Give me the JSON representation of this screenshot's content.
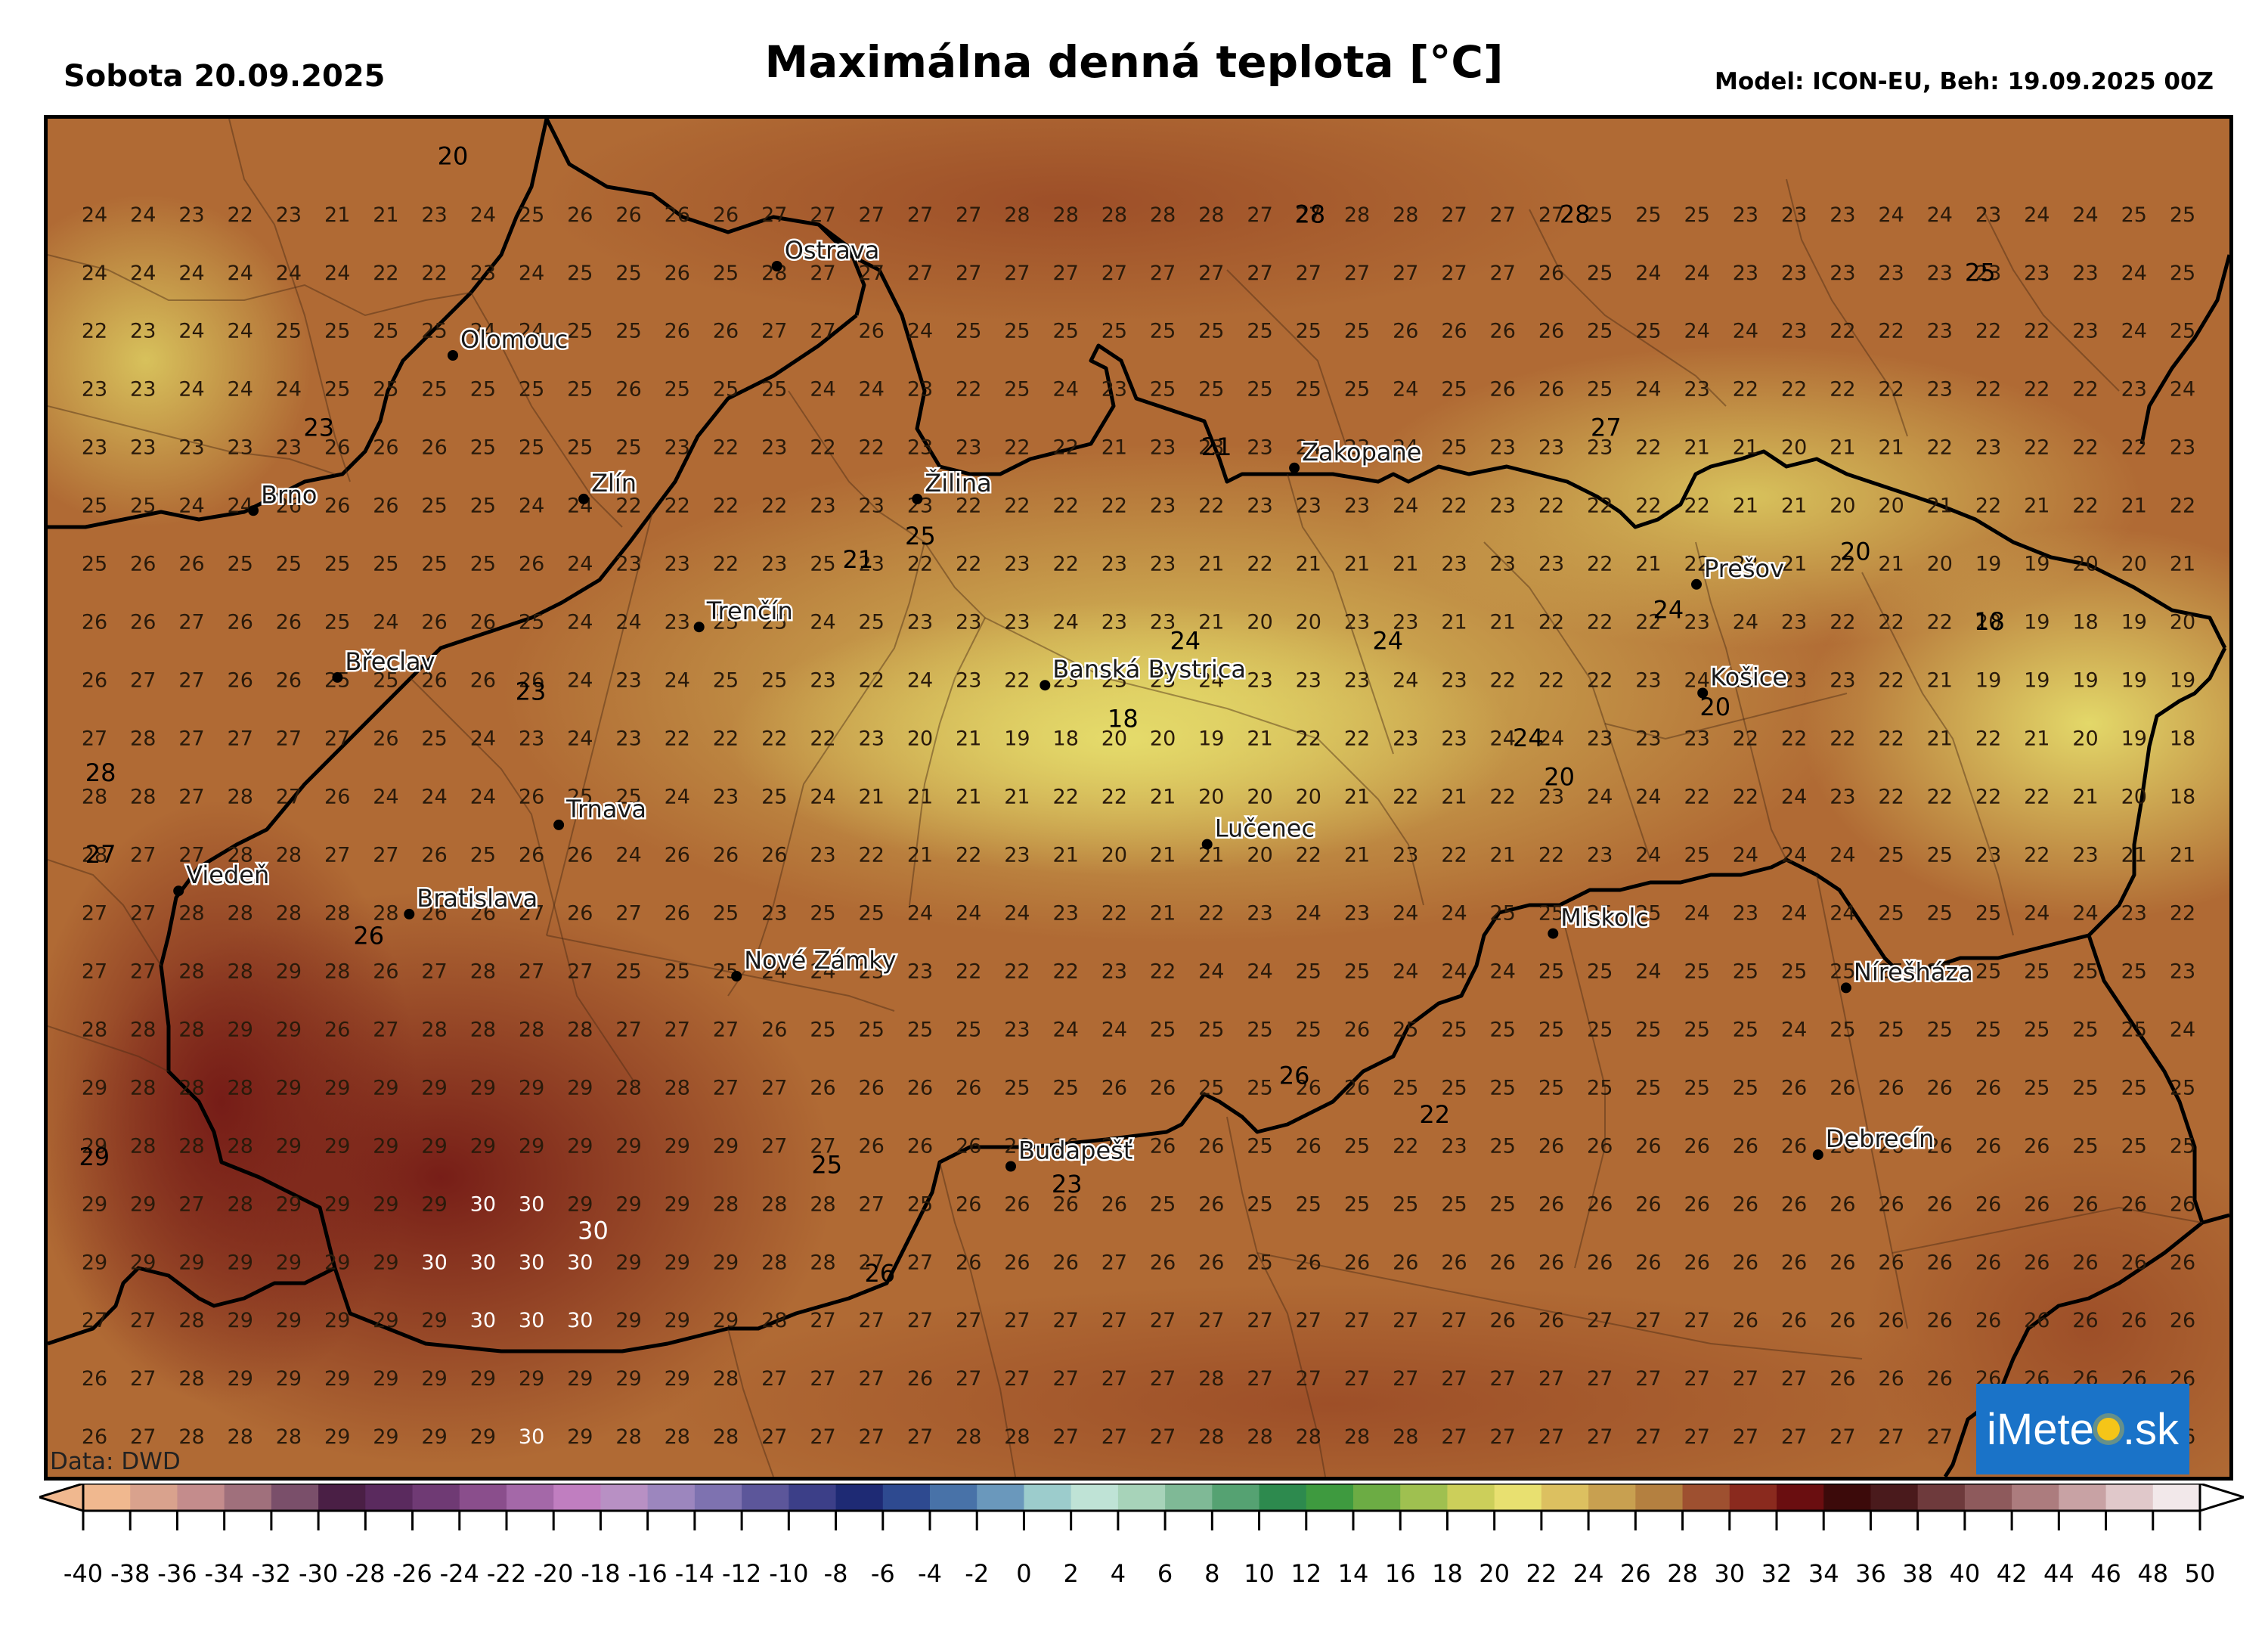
{
  "header": {
    "date": "Sobota 20.09.2025",
    "title": "Maximálna denná teplota [°C]",
    "model": "Model: ICON-EU, Beh: 19.09.2025 00Z"
  },
  "source": "Data: DWD",
  "logo": {
    "text_before": "iMete",
    "text_after": ".sk"
  },
  "colors": {
    "map_cold": "#e8e070",
    "map_mid": "#c48e42",
    "map_warm": "#a4532a",
    "map_hot": "#7a1e18",
    "border": "#000000",
    "logo_bg": "#1a73c8"
  },
  "colorbar": {
    "min": -40,
    "max": 50,
    "step": 2,
    "labels": [
      "-40",
      "-38",
      "-36",
      "-34",
      "-32",
      "-30",
      "-28",
      "-26",
      "-24",
      "-22",
      "-20",
      "-18",
      "-16",
      "-14",
      "-12",
      "-10",
      "-8",
      "-6",
      "-4",
      "-2",
      "0",
      "2",
      "4",
      "6",
      "8",
      "10",
      "12",
      "14",
      "16",
      "18",
      "20",
      "22",
      "24",
      "26",
      "28",
      "30",
      "32",
      "34",
      "36",
      "38",
      "40",
      "42",
      "44",
      "46",
      "48",
      "50"
    ],
    "colors": [
      "#f0b88f",
      "#d9a28d",
      "#c48c8c",
      "#a0707c",
      "#7a4f6a",
      "#4a1f45",
      "#5a2a5e",
      "#6f3a74",
      "#8a4e8c",
      "#a468a8",
      "#c07ec0",
      "#b890c4",
      "#9c86be",
      "#7e72b0",
      "#5c569a",
      "#3c3f88",
      "#1e2a74",
      "#2e4a90",
      "#4872a8",
      "#6a98bc",
      "#9ccccc",
      "#bfe3d6",
      "#a7d3b9",
      "#7fb996",
      "#55a272",
      "#2d8a4e",
      "#3e9a3f",
      "#6cac44",
      "#9fc050",
      "#cccf5a",
      "#e8e070",
      "#dcc060",
      "#c8a050",
      "#b48040",
      "#9e5030",
      "#8a2a1e",
      "#6a0e10",
      "#3c0a0a",
      "#4a1a1c",
      "#6e3a3c",
      "#8e5a5c",
      "#ac7c7e",
      "#c8a2a4",
      "#e0c8ca",
      "#f2e8ea"
    ]
  },
  "cities": [
    {
      "name": "Ostrava",
      "x": 18.29,
      "y": 49.82
    },
    {
      "name": "Olomouc",
      "x": 17.25,
      "y": 49.59
    },
    {
      "name": "Brno",
      "x": 16.61,
      "y": 49.19
    },
    {
      "name": "Zlín",
      "x": 17.67,
      "y": 49.22
    },
    {
      "name": "Žilina",
      "x": 18.74,
      "y": 49.22
    },
    {
      "name": "Zakopane",
      "x": 19.95,
      "y": 49.3
    },
    {
      "name": "Prešov",
      "x": 21.24,
      "y": 49.0
    },
    {
      "name": "Trenčín",
      "x": 18.04,
      "y": 48.89
    },
    {
      "name": "Banská Bystrica",
      "x": 19.15,
      "y": 48.74
    },
    {
      "name": "Košice",
      "x": 21.26,
      "y": 48.72
    },
    {
      "name": "Břeclav",
      "x": 16.88,
      "y": 48.76
    },
    {
      "name": "Trnava",
      "x": 17.59,
      "y": 48.38
    },
    {
      "name": "Lučenec",
      "x": 19.67,
      "y": 48.33
    },
    {
      "name": "Viedeň",
      "x": 16.37,
      "y": 48.21
    },
    {
      "name": "Bratislava",
      "x": 17.11,
      "y": 48.15
    },
    {
      "name": "Miskolc",
      "x": 20.78,
      "y": 48.1
    },
    {
      "name": "Nové Zámky",
      "x": 18.16,
      "y": 47.99
    },
    {
      "name": "Nírešháza",
      "x": 21.72,
      "y": 47.96
    },
    {
      "name": "Debrecín",
      "x": 21.63,
      "y": 47.53
    },
    {
      "name": "Budapešť",
      "x": 19.04,
      "y": 47.5
    }
  ],
  "grid_values": [
    {
      "row_lat": 49.95,
      "values": [
        24,
        24,
        23,
        22,
        23,
        21,
        21,
        23,
        24,
        25,
        26,
        26,
        26,
        26,
        27,
        27,
        27,
        27,
        27,
        28,
        28,
        28,
        28,
        28,
        27,
        27,
        28,
        28,
        27,
        27,
        27,
        25,
        25,
        25,
        23,
        23,
        23,
        24,
        24,
        23,
        24,
        24,
        25,
        25
      ]
    },
    {
      "row_lat": 49.8,
      "values": [
        24,
        24,
        24,
        24,
        24,
        24,
        22,
        22,
        23,
        24,
        25,
        25,
        26,
        25,
        28,
        27,
        27,
        27,
        27,
        27,
        27,
        27,
        27,
        27,
        27,
        27,
        27,
        27,
        27,
        27,
        26,
        25,
        24,
        24,
        23,
        23,
        23,
        23,
        23,
        23,
        23,
        23,
        24,
        25
      ]
    },
    {
      "row_lat": 49.65,
      "values": [
        22,
        23,
        24,
        24,
        25,
        25,
        25,
        25,
        24,
        24,
        25,
        25,
        26,
        26,
        27,
        27,
        26,
        24,
        25,
        25,
        25,
        25,
        25,
        25,
        25,
        25,
        25,
        26,
        26,
        26,
        26,
        25,
        25,
        24,
        24,
        23,
        22,
        22,
        23,
        22,
        22,
        23,
        24,
        25
      ]
    },
    {
      "row_lat": 49.5,
      "values": [
        23,
        23,
        24,
        24,
        24,
        25,
        25,
        25,
        25,
        25,
        25,
        26,
        25,
        25,
        25,
        24,
        24,
        23,
        22,
        25,
        24,
        23,
        25,
        25,
        25,
        25,
        25,
        24,
        25,
        26,
        26,
        25,
        24,
        23,
        22,
        22,
        22,
        22,
        23,
        22,
        22,
        22,
        23,
        24
      ]
    },
    {
      "row_lat": 49.35,
      "values": [
        23,
        23,
        23,
        23,
        23,
        26,
        26,
        26,
        25,
        25,
        25,
        25,
        23,
        22,
        23,
        22,
        22,
        23,
        23,
        22,
        22,
        21,
        23,
        23,
        23,
        24,
        23,
        24,
        25,
        23,
        23,
        23,
        22,
        21,
        21,
        20,
        21,
        21,
        22,
        23,
        22,
        22,
        22,
        23
      ]
    },
    {
      "row_lat": 49.2,
      "values": [
        25,
        25,
        24,
        24,
        26,
        26,
        26,
        25,
        25,
        24,
        24,
        22,
        22,
        22,
        22,
        23,
        23,
        23,
        22,
        22,
        22,
        22,
        23,
        22,
        23,
        23,
        23,
        24,
        22,
        23,
        22,
        22,
        22,
        22,
        21,
        21,
        20,
        20,
        21,
        22,
        21,
        22,
        21,
        22
      ]
    },
    {
      "row_lat": 49.05,
      "values": [
        25,
        26,
        26,
        25,
        25,
        25,
        25,
        25,
        25,
        26,
        24,
        23,
        23,
        22,
        23,
        25,
        23,
        22,
        22,
        23,
        22,
        23,
        23,
        21,
        22,
        21,
        21,
        21,
        23,
        23,
        23,
        22,
        21,
        22,
        22,
        21,
        22,
        21,
        20,
        19,
        19,
        20,
        20,
        21
      ]
    },
    {
      "row_lat": 48.9,
      "values": [
        26,
        26,
        27,
        26,
        26,
        25,
        24,
        26,
        26,
        25,
        24,
        24,
        23,
        25,
        25,
        24,
        25,
        23,
        23,
        23,
        24,
        23,
        23,
        21,
        20,
        20,
        23,
        23,
        21,
        21,
        22,
        22,
        22,
        23,
        24,
        23,
        22,
        22,
        22,
        20,
        19,
        18,
        19,
        20
      ]
    },
    {
      "row_lat": 48.75,
      "values": [
        26,
        27,
        27,
        26,
        26,
        25,
        25,
        26,
        26,
        26,
        24,
        23,
        24,
        25,
        25,
        23,
        22,
        24,
        23,
        22,
        23,
        23,
        23,
        24,
        23,
        23,
        23,
        24,
        23,
        22,
        22,
        22,
        23,
        24,
        23,
        23,
        23,
        22,
        21,
        19,
        19,
        19,
        19,
        19
      ]
    },
    {
      "row_lat": 48.6,
      "values": [
        27,
        28,
        27,
        27,
        27,
        27,
        26,
        25,
        24,
        23,
        24,
        23,
        22,
        22,
        22,
        22,
        23,
        20,
        21,
        19,
        18,
        20,
        20,
        19,
        21,
        22,
        22,
        23,
        23,
        24,
        24,
        23,
        23,
        23,
        22,
        22,
        22,
        22,
        21,
        22,
        21,
        20,
        19,
        18
      ]
    },
    {
      "row_lat": 48.45,
      "values": [
        28,
        28,
        27,
        28,
        27,
        26,
        24,
        24,
        24,
        26,
        25,
        25,
        24,
        23,
        25,
        24,
        21,
        21,
        21,
        21,
        22,
        22,
        21,
        20,
        20,
        20,
        21,
        22,
        21,
        22,
        23,
        24,
        24,
        22,
        22,
        24,
        23,
        22,
        22,
        22,
        22,
        21,
        20,
        18
      ]
    },
    {
      "row_lat": 48.3,
      "values": [
        28,
        27,
        27,
        28,
        28,
        27,
        27,
        26,
        25,
        26,
        26,
        24,
        26,
        26,
        26,
        23,
        22,
        21,
        22,
        23,
        21,
        20,
        21,
        21,
        20,
        22,
        21,
        23,
        22,
        21,
        22,
        23,
        24,
        25,
        24,
        24,
        24,
        25,
        25,
        23,
        22,
        23,
        21,
        21
      ]
    },
    {
      "row_lat": 48.15,
      "values": [
        27,
        27,
        28,
        28,
        28,
        28,
        28,
        26,
        26,
        27,
        26,
        27,
        26,
        25,
        23,
        25,
        25,
        24,
        24,
        24,
        23,
        22,
        21,
        22,
        23,
        24,
        23,
        24,
        24,
        25,
        25,
        25,
        25,
        24,
        23,
        24,
        24,
        25,
        25,
        25,
        24,
        24,
        23,
        22
      ]
    },
    {
      "row_lat": 48.0,
      "values": [
        27,
        27,
        28,
        28,
        29,
        28,
        26,
        27,
        28,
        27,
        27,
        25,
        25,
        25,
        24,
        24,
        23,
        23,
        22,
        22,
        22,
        23,
        22,
        24,
        24,
        25,
        25,
        24,
        24,
        24,
        25,
        25,
        24,
        25,
        25,
        25,
        25,
        25,
        25,
        25,
        25,
        25,
        25,
        23
      ]
    },
    {
      "row_lat": 47.85,
      "values": [
        28,
        28,
        28,
        29,
        29,
        26,
        27,
        28,
        28,
        28,
        28,
        27,
        27,
        27,
        26,
        25,
        25,
        25,
        25,
        23,
        24,
        24,
        25,
        25,
        25,
        25,
        26,
        25,
        25,
        25,
        25,
        25,
        25,
        25,
        25,
        24,
        25,
        25,
        25,
        25,
        25,
        25,
        25,
        24
      ]
    },
    {
      "row_lat": 47.7,
      "values": [
        29,
        28,
        28,
        28,
        29,
        29,
        29,
        29,
        29,
        29,
        29,
        28,
        28,
        27,
        27,
        26,
        26,
        26,
        26,
        25,
        25,
        26,
        26,
        25,
        25,
        26,
        26,
        25,
        25,
        25,
        25,
        25,
        25,
        25,
        25,
        26,
        26,
        26,
        26,
        26,
        25,
        25,
        25,
        25
      ]
    },
    {
      "row_lat": 47.55,
      "values": [
        29,
        28,
        28,
        28,
        29,
        29,
        29,
        29,
        29,
        29,
        29,
        29,
        29,
        29,
        27,
        27,
        26,
        26,
        26,
        26,
        26,
        26,
        26,
        26,
        25,
        26,
        25,
        22,
        23,
        25,
        26,
        26,
        26,
        26,
        26,
        26,
        26,
        26,
        26,
        26,
        26,
        25,
        25,
        25
      ]
    },
    {
      "row_lat": 47.4,
      "values": [
        29,
        29,
        27,
        28,
        29,
        29,
        29,
        29,
        30,
        30,
        29,
        29,
        29,
        28,
        28,
        28,
        27,
        25,
        26,
        26,
        26,
        26,
        25,
        26,
        25,
        25,
        25,
        25,
        25,
        25,
        26,
        26,
        26,
        26,
        26,
        26,
        26,
        26,
        26,
        26,
        26,
        26,
        26,
        26
      ]
    },
    {
      "row_lat": 47.25,
      "values": [
        29,
        29,
        29,
        29,
        29,
        29,
        29,
        30,
        30,
        30,
        30,
        29,
        29,
        29,
        28,
        28,
        27,
        27,
        26,
        26,
        26,
        27,
        26,
        26,
        25,
        26,
        26,
        26,
        26,
        26,
        26,
        26,
        26,
        26,
        26,
        26,
        26,
        26,
        26,
        26,
        26,
        26,
        26,
        26
      ]
    },
    {
      "row_lat": 47.1,
      "values": [
        27,
        27,
        28,
        29,
        29,
        29,
        29,
        29,
        30,
        30,
        30,
        29,
        29,
        29,
        28,
        27,
        27,
        27,
        27,
        27,
        27,
        27,
        27,
        27,
        27,
        27,
        27,
        27,
        27,
        26,
        26,
        27,
        27,
        27,
        26,
        26,
        26,
        26,
        26,
        26,
        26,
        26,
        26,
        26
      ]
    },
    {
      "row_lat": 46.95,
      "values": [
        26,
        27,
        28,
        29,
        29,
        29,
        29,
        29,
        29,
        29,
        29,
        29,
        29,
        28,
        27,
        27,
        27,
        26,
        27,
        27,
        27,
        27,
        27,
        28,
        27,
        27,
        27,
        27,
        27,
        27,
        27,
        27,
        27,
        27,
        27,
        27,
        26,
        26,
        26,
        26,
        26,
        26,
        26,
        26
      ]
    },
    {
      "row_lat": 46.8,
      "values": [
        26,
        27,
        28,
        28,
        28,
        29,
        29,
        29,
        29,
        30,
        29,
        28,
        28,
        28,
        27,
        27,
        27,
        27,
        28,
        28,
        27,
        27,
        27,
        28,
        28,
        28,
        28,
        28,
        27,
        27,
        27,
        27,
        27,
        27,
        27,
        27,
        27,
        27,
        27,
        27,
        27,
        26,
        26,
        26
      ]
    }
  ],
  "contour_labels": [
    {
      "v": 20,
      "x": 17.25,
      "y": 50.1
    },
    {
      "v": 28,
      "x": 20.0,
      "y": 49.95
    },
    {
      "v": 28,
      "x": 20.85,
      "y": 49.95
    },
    {
      "v": 23,
      "x": 16.82,
      "y": 49.4
    },
    {
      "v": 21,
      "x": 19.7,
      "y": 49.35
    },
    {
      "v": 27,
      "x": 20.95,
      "y": 49.4
    },
    {
      "v": 21,
      "x": 18.55,
      "y": 49.06
    },
    {
      "v": 25,
      "x": 18.75,
      "y": 49.12
    },
    {
      "v": 24,
      "x": 19.6,
      "y": 48.85
    },
    {
      "v": 24,
      "x": 20.25,
      "y": 48.85
    },
    {
      "v": 24,
      "x": 21.15,
      "y": 48.93
    },
    {
      "v": 20,
      "x": 21.75,
      "y": 49.08
    },
    {
      "v": 18,
      "x": 22.18,
      "y": 48.9
    },
    {
      "v": 18,
      "x": 19.4,
      "y": 48.65
    },
    {
      "v": 23,
      "x": 17.5,
      "y": 48.72
    },
    {
      "v": 20,
      "x": 21.3,
      "y": 48.68
    },
    {
      "v": 24,
      "x": 20.7,
      "y": 48.6
    },
    {
      "v": 20,
      "x": 20.8,
      "y": 48.5
    },
    {
      "v": 28,
      "x": 16.12,
      "y": 48.51
    },
    {
      "v": 27,
      "x": 16.12,
      "y": 48.3
    },
    {
      "v": 26,
      "x": 16.98,
      "y": 48.09
    },
    {
      "v": 26,
      "x": 19.95,
      "y": 47.73
    },
    {
      "v": 22,
      "x": 20.4,
      "y": 47.63
    },
    {
      "v": 29,
      "x": 16.1,
      "y": 47.52
    },
    {
      "v": 25,
      "x": 18.45,
      "y": 47.5
    },
    {
      "v": 23,
      "x": 19.22,
      "y": 47.45
    },
    {
      "v": 30,
      "x": 17.7,
      "y": 47.33
    },
    {
      "v": 26,
      "x": 18.62,
      "y": 47.22
    },
    {
      "v": 25,
      "x": 22.15,
      "y": 49.8
    }
  ]
}
